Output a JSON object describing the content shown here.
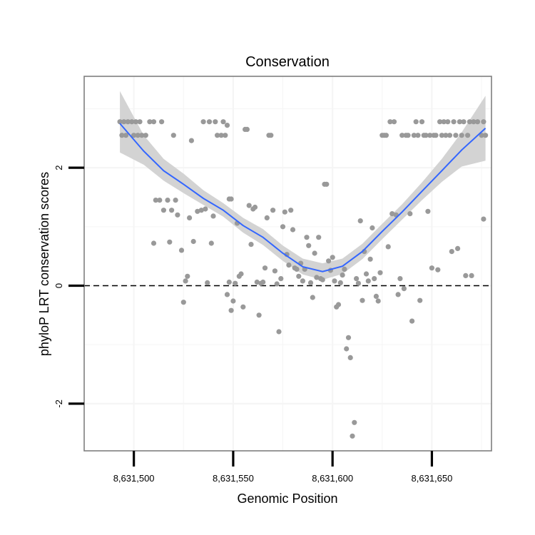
{
  "chart_data": {
    "type": "scatter",
    "title": "Conservation",
    "xlabel": "Genomic Position",
    "ylabel": "phyloP LRT conservation scores",
    "xlim": [
      8631475,
      8631680
    ],
    "ylim": [
      -2.8,
      3.55
    ],
    "x_ticks": [
      8631500,
      8631550,
      8631600,
      8631650
    ],
    "x_tick_labels": [
      "8,631,500",
      "8,631,550",
      "8,631,600",
      "8,631,650"
    ],
    "y_ticks": [
      -2,
      0,
      2
    ],
    "y_tick_labels": [
      "-2",
      "0",
      "2"
    ],
    "grid": true,
    "reference_line": {
      "y": 0,
      "style": "dashed"
    },
    "colors": {
      "points": "#999999",
      "smooth_line": "#3366ff",
      "confidence_band": "#d3d3d3",
      "panel_border": "#7f7f7f",
      "gridline": "#f5f5f5"
    },
    "points": [
      [
        8631493,
        2.78
      ],
      [
        8631495,
        2.78
      ],
      [
        8631497,
        2.78
      ],
      [
        8631499,
        2.78
      ],
      [
        8631501,
        2.78
      ],
      [
        8631503,
        2.78
      ],
      [
        8631494,
        2.55
      ],
      [
        8631496,
        2.55
      ],
      [
        8631500,
        2.55
      ],
      [
        8631502,
        2.55
      ],
      [
        8631504,
        2.55
      ],
      [
        8631506,
        2.55
      ],
      [
        8631508,
        2.78
      ],
      [
        8631510,
        2.78
      ],
      [
        8631514,
        2.78
      ],
      [
        8631511,
        1.45
      ],
      [
        8631513,
        1.45
      ],
      [
        8631515,
        1.28
      ],
      [
        8631517,
        1.45
      ],
      [
        8631519,
        1.28
      ],
      [
        8631521,
        1.45
      ],
      [
        8631522,
        1.2
      ],
      [
        8631510,
        0.72
      ],
      [
        8631518,
        0.74
      ],
      [
        8631524,
        0.6
      ],
      [
        8631520,
        2.55
      ],
      [
        8631525,
        -0.28
      ],
      [
        8631526,
        0.08
      ],
      [
        8631527,
        0.16
      ],
      [
        8631528,
        1.15
      ],
      [
        8631529,
        2.46
      ],
      [
        8631530,
        0.75
      ],
      [
        8631532,
        1.26
      ],
      [
        8631534,
        1.28
      ],
      [
        8631535,
        2.78
      ],
      [
        8631536,
        1.3
      ],
      [
        8631537,
        0.05
      ],
      [
        8631538,
        2.78
      ],
      [
        8631539,
        0.72
      ],
      [
        8631540,
        1.18
      ],
      [
        8631541,
        2.78
      ],
      [
        8631542,
        2.55
      ],
      [
        8631544,
        2.55
      ],
      [
        8631545,
        2.78
      ],
      [
        8631546,
        2.55
      ],
      [
        8631547,
        2.72
      ],
      [
        8631548,
        1.47
      ],
      [
        8631549,
        1.47
      ],
      [
        8631547,
        -0.15
      ],
      [
        8631548,
        0.06
      ],
      [
        8631549,
        -0.42
      ],
      [
        8631550,
        -0.26
      ],
      [
        8631551,
        0.04
      ],
      [
        8631552,
        1.06
      ],
      [
        8631553,
        0.16
      ],
      [
        8631554,
        0.2
      ],
      [
        8631555,
        -0.36
      ],
      [
        8631556,
        2.65
      ],
      [
        8631557,
        2.65
      ],
      [
        8631558,
        1.36
      ],
      [
        8631559,
        0.7
      ],
      [
        8631560,
        1.3
      ],
      [
        8631561,
        1.33
      ],
      [
        8631562,
        0.06
      ],
      [
        8631563,
        -0.5
      ],
      [
        8631564,
        0.04
      ],
      [
        8631565,
        0.06
      ],
      [
        8631566,
        0.3
      ],
      [
        8631567,
        1.15
      ],
      [
        8631568,
        2.55
      ],
      [
        8631569,
        2.55
      ],
      [
        8631570,
        1.28
      ],
      [
        8631571,
        0.25
      ],
      [
        8631572,
        0.03
      ],
      [
        8631573,
        -0.78
      ],
      [
        8631574,
        0.12
      ],
      [
        8631575,
        1.0
      ],
      [
        8631576,
        1.25
      ],
      [
        8631577,
        0.53
      ],
      [
        8631578,
        0.35
      ],
      [
        8631579,
        1.28
      ],
      [
        8631580,
        0.95
      ],
      [
        8631581,
        0.3
      ],
      [
        8631582,
        0.28
      ],
      [
        8631583,
        0.16
      ],
      [
        8631584,
        0.38
      ],
      [
        8631585,
        0.08
      ],
      [
        8631586,
        0.28
      ],
      [
        8631587,
        0.82
      ],
      [
        8631588,
        0.68
      ],
      [
        8631589,
        0.05
      ],
      [
        8631590,
        -0.2
      ],
      [
        8631591,
        0.55
      ],
      [
        8631592,
        0.14
      ],
      [
        8631593,
        0.82
      ],
      [
        8631594,
        0.12
      ],
      [
        8631595,
        0.1
      ],
      [
        8631596,
        1.72
      ],
      [
        8631597,
        1.72
      ],
      [
        8631598,
        0.42
      ],
      [
        8631599,
        0.26
      ],
      [
        8631600,
        0.48
      ],
      [
        8631601,
        0.08
      ],
      [
        8631602,
        -0.36
      ],
      [
        8631603,
        -0.32
      ],
      [
        8631604,
        0.05
      ],
      [
        8631605,
        0.18
      ],
      [
        8631606,
        0.28
      ],
      [
        8631607,
        -1.07
      ],
      [
        8631608,
        -0.88
      ],
      [
        8631609,
        -1.22
      ],
      [
        8631610,
        -2.55
      ],
      [
        8631611,
        -2.32
      ],
      [
        8631612,
        0.12
      ],
      [
        8631613,
        0.04
      ],
      [
        8631614,
        1.1
      ],
      [
        8631615,
        -0.25
      ],
      [
        8631616,
        0.58
      ],
      [
        8631617,
        0.2
      ],
      [
        8631618,
        0.08
      ],
      [
        8631619,
        0.45
      ],
      [
        8631620,
        0.98
      ],
      [
        8631621,
        0.12
      ],
      [
        8631622,
        -0.18
      ],
      [
        8631623,
        -0.26
      ],
      [
        8631624,
        0.22
      ],
      [
        8631625,
        2.55
      ],
      [
        8631626,
        2.55
      ],
      [
        8631627,
        2.55
      ],
      [
        8631628,
        0.66
      ],
      [
        8631629,
        2.78
      ],
      [
        8631630,
        1.22
      ],
      [
        8631631,
        2.78
      ],
      [
        8631632,
        1.2
      ],
      [
        8631633,
        -0.15
      ],
      [
        8631634,
        0.12
      ],
      [
        8631635,
        2.55
      ],
      [
        8631636,
        -0.05
      ],
      [
        8631637,
        2.55
      ],
      [
        8631638,
        2.55
      ],
      [
        8631639,
        1.22
      ],
      [
        8631640,
        -0.6
      ],
      [
        8631641,
        2.55
      ],
      [
        8631642,
        2.78
      ],
      [
        8631643,
        2.55
      ],
      [
        8631644,
        -0.25
      ],
      [
        8631645,
        2.78
      ],
      [
        8631646,
        2.55
      ],
      [
        8631647,
        2.55
      ],
      [
        8631648,
        1.26
      ],
      [
        8631649,
        2.55
      ],
      [
        8631650,
        0.3
      ],
      [
        8631651,
        2.55
      ],
      [
        8631652,
        2.55
      ],
      [
        8631653,
        0.27
      ],
      [
        8631654,
        2.78
      ],
      [
        8631655,
        2.55
      ],
      [
        8631656,
        2.78
      ],
      [
        8631657,
        2.55
      ],
      [
        8631658,
        2.78
      ],
      [
        8631659,
        2.55
      ],
      [
        8631660,
        0.58
      ],
      [
        8631661,
        2.78
      ],
      [
        8631662,
        2.55
      ],
      [
        8631663,
        0.63
      ],
      [
        8631664,
        2.78
      ],
      [
        8631665,
        2.55
      ],
      [
        8631666,
        2.78
      ],
      [
        8631667,
        0.17
      ],
      [
        8631668,
        2.55
      ],
      [
        8631669,
        2.78
      ],
      [
        8631670,
        0.17
      ],
      [
        8631671,
        2.78
      ],
      [
        8631673,
        2.78
      ],
      [
        8631675,
        2.55
      ],
      [
        8631676,
        1.13
      ],
      [
        8631677,
        2.55
      ],
      [
        8631676,
        2.78
      ]
    ],
    "smooth": {
      "x": [
        8631493,
        8631505,
        8631515,
        8631525,
        8631535,
        8631545,
        8631555,
        8631565,
        8631575,
        8631585,
        8631595,
        8631605,
        8631615,
        8631625,
        8631635,
        8631645,
        8631655,
        8631665,
        8631677
      ],
      "y": [
        2.75,
        2.28,
        1.95,
        1.72,
        1.48,
        1.28,
        1.02,
        0.82,
        0.55,
        0.32,
        0.24,
        0.33,
        0.58,
        0.92,
        1.25,
        1.6,
        1.95,
        2.3,
        2.67
      ],
      "lower": [
        2.26,
        2.05,
        1.78,
        1.57,
        1.37,
        1.17,
        0.9,
        0.69,
        0.42,
        0.19,
        0.1,
        0.2,
        0.45,
        0.79,
        1.12,
        1.45,
        1.76,
        2.02,
        2.12
      ],
      "upper": [
        3.3,
        2.55,
        2.15,
        1.9,
        1.62,
        1.4,
        1.15,
        0.96,
        0.68,
        0.46,
        0.38,
        0.46,
        0.71,
        1.05,
        1.38,
        1.75,
        2.15,
        2.6,
        3.22
      ]
    }
  }
}
